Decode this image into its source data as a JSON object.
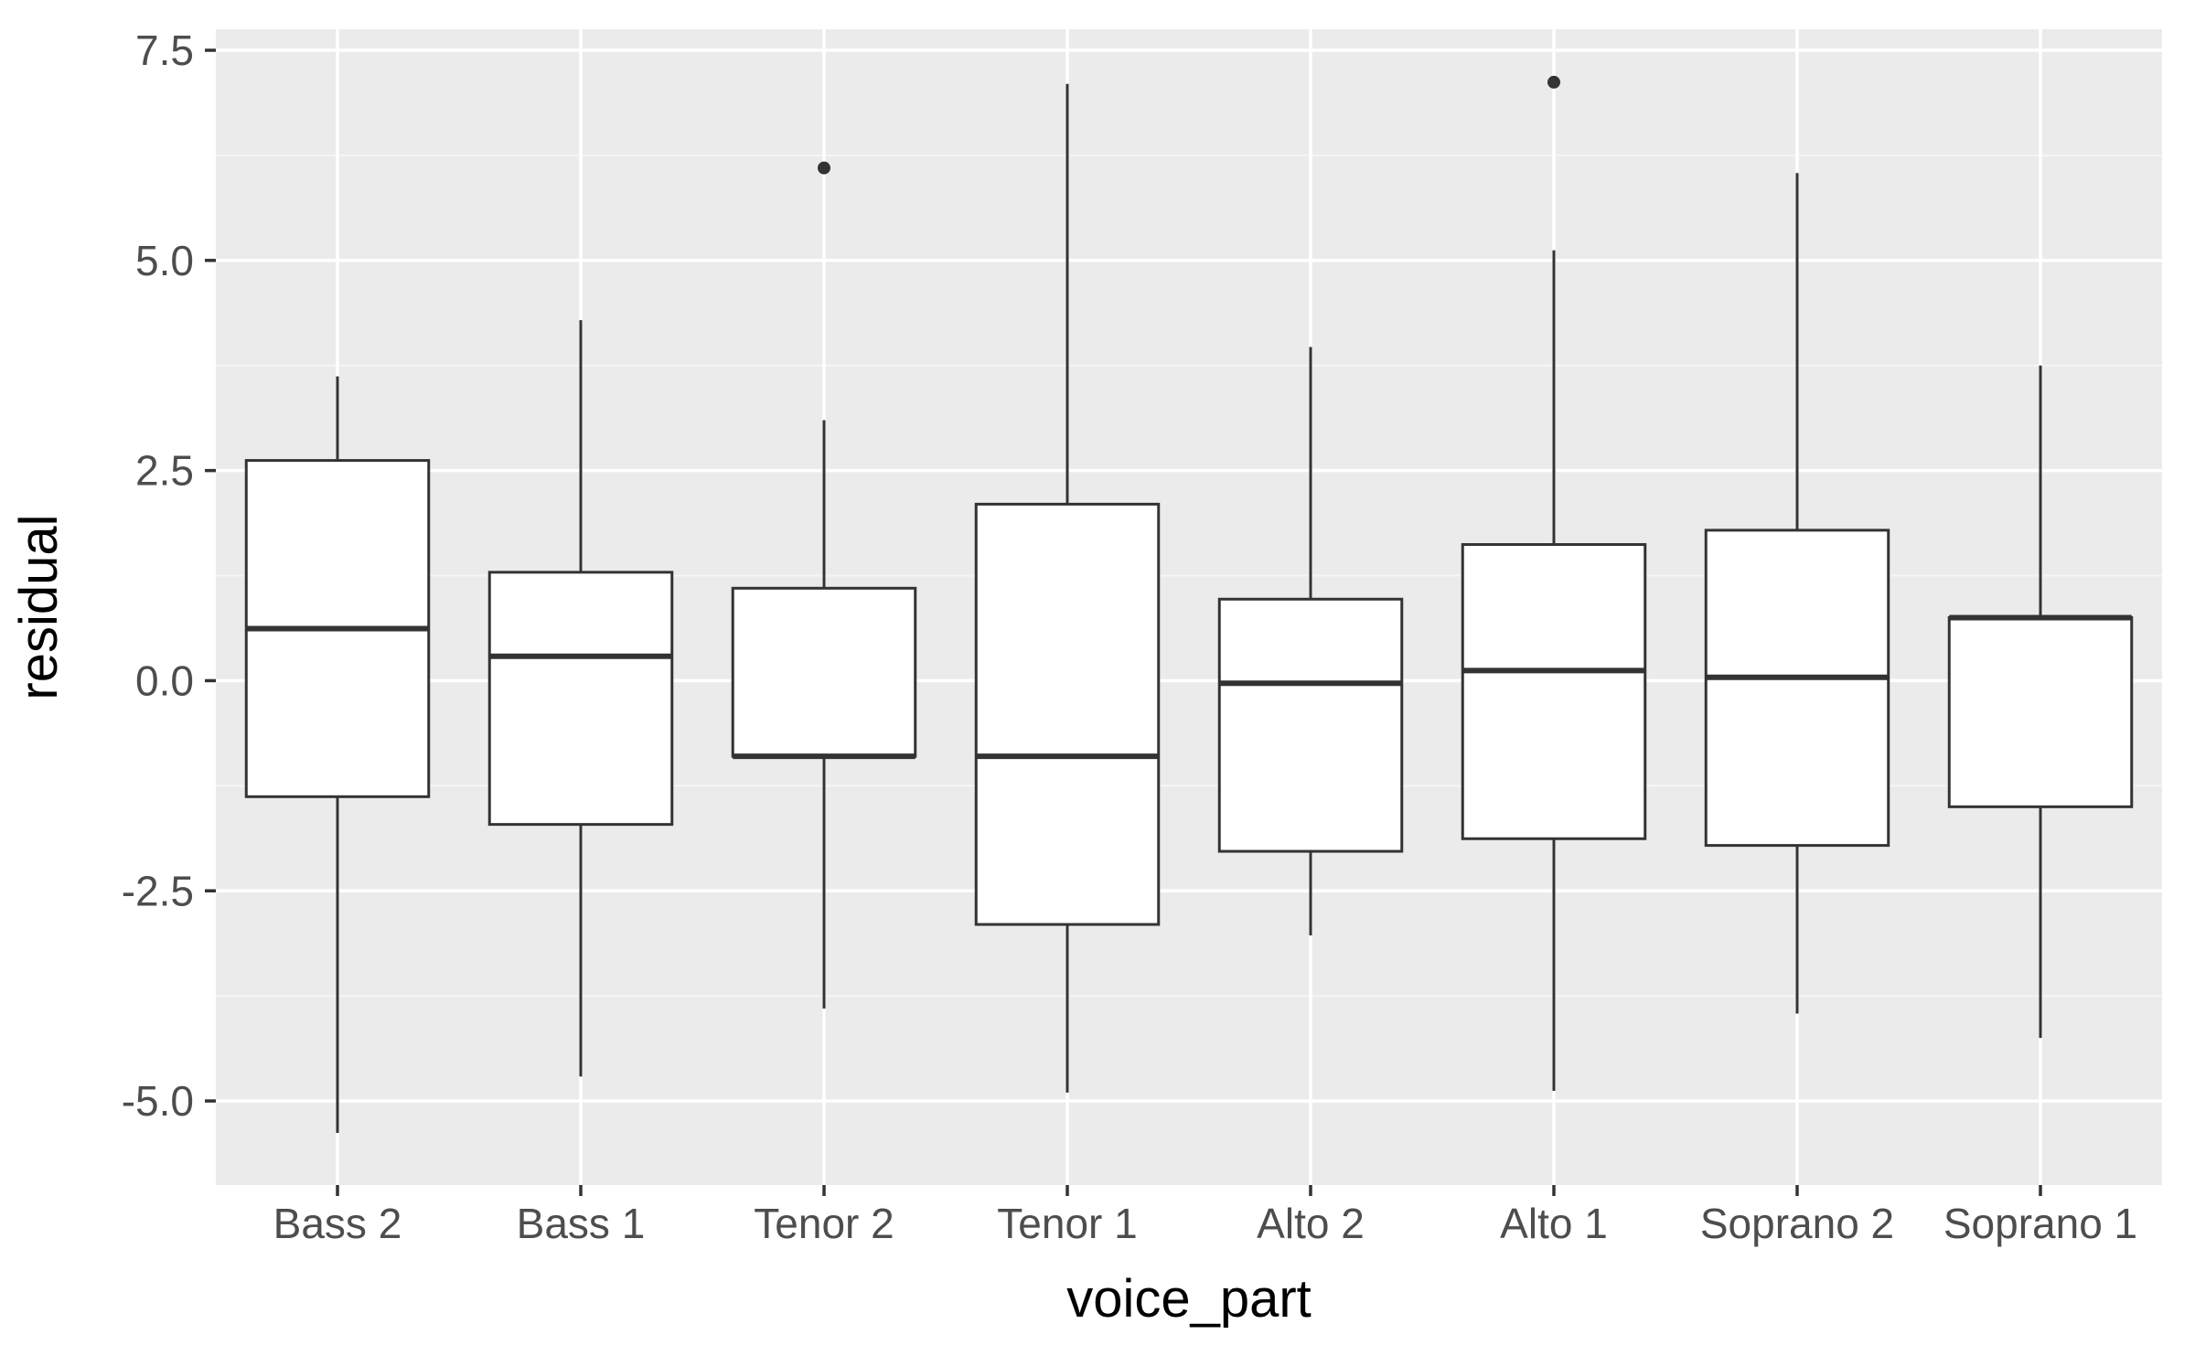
{
  "chart_data": {
    "type": "boxplot",
    "title": "",
    "xlabel": "voice_part",
    "ylabel": "residual",
    "ylim": [
      -6.0,
      7.75
    ],
    "y_ticks": [
      -5.0,
      -2.5,
      0.0,
      2.5,
      5.0,
      7.5
    ],
    "y_tick_labels": [
      "-5.0",
      "-2.5",
      "0.0",
      "2.5",
      "5.0",
      "7.5"
    ],
    "categories": [
      "Bass 2",
      "Bass 1",
      "Tenor 2",
      "Tenor 1",
      "Alto 2",
      "Alto 1",
      "Soprano 2",
      "Soprano 1"
    ],
    "boxes": [
      {
        "category": "Bass 2",
        "min": -5.38,
        "q1": -1.38,
        "median": 0.62,
        "q3": 2.62,
        "max": 3.62,
        "outliers": []
      },
      {
        "category": "Bass 1",
        "min": -4.71,
        "q1": -1.71,
        "median": 0.29,
        "q3": 1.29,
        "max": 4.29,
        "outliers": []
      },
      {
        "category": "Tenor 2",
        "min": -3.9,
        "q1": -0.9,
        "median": -0.9,
        "q3": 1.1,
        "max": 3.1,
        "outliers": [
          6.1
        ]
      },
      {
        "category": "Tenor 1",
        "min": -4.9,
        "q1": -2.9,
        "median": -0.9,
        "q3": 2.1,
        "max": 7.1,
        "outliers": []
      },
      {
        "category": "Alto 2",
        "min": -3.03,
        "q1": -2.03,
        "median": -0.03,
        "q3": 0.97,
        "max": 3.97,
        "outliers": []
      },
      {
        "category": "Alto 1",
        "min": -4.88,
        "q1": -1.88,
        "median": 0.12,
        "q3": 1.62,
        "max": 5.12,
        "outliers": [
          7.12
        ]
      },
      {
        "category": "Soprano 2",
        "min": -3.96,
        "q1": -1.96,
        "median": 0.04,
        "q3": 1.79,
        "max": 6.04,
        "outliers": []
      },
      {
        "category": "Soprano 1",
        "min": -4.25,
        "q1": -1.5,
        "median": 0.75,
        "q3": 0.75,
        "max": 3.75,
        "outliers": []
      }
    ],
    "grid": true,
    "legend": "none",
    "colors": {
      "panel_background": "#ebebeb",
      "grid_major": "#ffffff",
      "grid_minor": "#f5f5f5",
      "box_fill": "#ffffff",
      "box_line": "#333333",
      "tick_mark": "#333333"
    }
  }
}
